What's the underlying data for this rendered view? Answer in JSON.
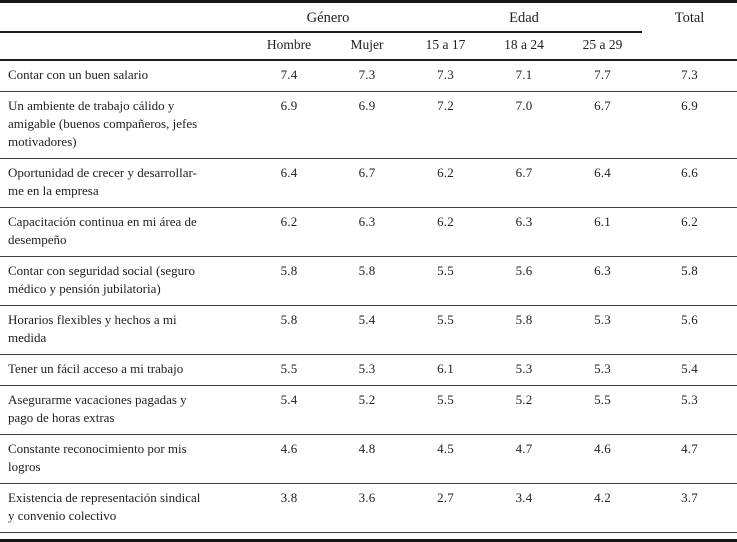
{
  "chart_data": {
    "type": "table",
    "column_groups": [
      {
        "label": "Género",
        "columns": [
          "Hombre",
          "Mujer"
        ]
      },
      {
        "label": "Edad",
        "columns": [
          "15 a 17",
          "18 a 24",
          "25 a 29"
        ]
      }
    ],
    "columns": [
      "Hombre",
      "Mujer",
      "15 a 17",
      "18 a 24",
      "25 a 29",
      "Total"
    ],
    "rows": [
      {
        "label": "Contar con un buen salario",
        "values": [
          7.4,
          7.3,
          7.3,
          7.1,
          7.7,
          7.3
        ]
      },
      {
        "label": "Un ambiente de trabajo cálido y amigable (buenos compañeros, jefes motivadores)",
        "values": [
          6.9,
          6.9,
          7.2,
          7.0,
          6.7,
          6.9
        ]
      },
      {
        "label": "Oportunidad de crecer y desarrollarme en la empresa",
        "values": [
          6.4,
          6.7,
          6.2,
          6.7,
          6.4,
          6.6
        ]
      },
      {
        "label": "Capacitación continua en mi área de desempeño",
        "values": [
          6.2,
          6.3,
          6.2,
          6.3,
          6.1,
          6.2
        ]
      },
      {
        "label": "Contar con seguridad social (seguro médico y pensión jubilatoria)",
        "values": [
          5.8,
          5.8,
          5.5,
          5.6,
          6.3,
          5.8
        ]
      },
      {
        "label": "Horarios flexibles y hechos a mi medida",
        "values": [
          5.8,
          5.4,
          5.5,
          5.8,
          5.3,
          5.6
        ]
      },
      {
        "label": "Tener un fácil acceso a mi trabajo",
        "values": [
          5.5,
          5.3,
          6.1,
          5.3,
          5.3,
          5.4
        ]
      },
      {
        "label": "Asegurarme vacaciones pagadas y pago de horas extras",
        "values": [
          5.4,
          5.2,
          5.5,
          5.2,
          5.5,
          5.3
        ]
      },
      {
        "label": "Constante reconocimiento por mis logros",
        "values": [
          4.6,
          4.8,
          4.5,
          4.7,
          4.6,
          4.7
        ]
      },
      {
        "label": "Existencia de representación sindical y convenio colectivo",
        "values": [
          3.8,
          3.6,
          2.7,
          3.4,
          4.2,
          3.7
        ]
      }
    ]
  },
  "display": {
    "row_labels": [
      "Contar con un buen salario",
      "Un ambiente de trabajo cálido y\namigable (buenos compañeros, jefes\nmotivadores)",
      "Oportunidad de crecer y desarrollar-\nme en la empresa",
      "Capacitación continua en mi área de\ndesempeño",
      "Contar con seguridad social (seguro\nmédico y pensión jubilatoria)",
      "Horarios flexibles y hechos a mi\nmedida",
      "Tener un fácil acceso a mi trabajo",
      "Asegurarme vacaciones pagadas y\npago de horas extras",
      "Constante reconocimiento por mis\nlogros",
      "Existencia de representación sindical\ny convenio colectivo"
    ]
  },
  "colors": {
    "rule_thick": "#161616",
    "rule_thin": "#3f3f3f",
    "text": "#222222",
    "background": "#ffffff"
  }
}
